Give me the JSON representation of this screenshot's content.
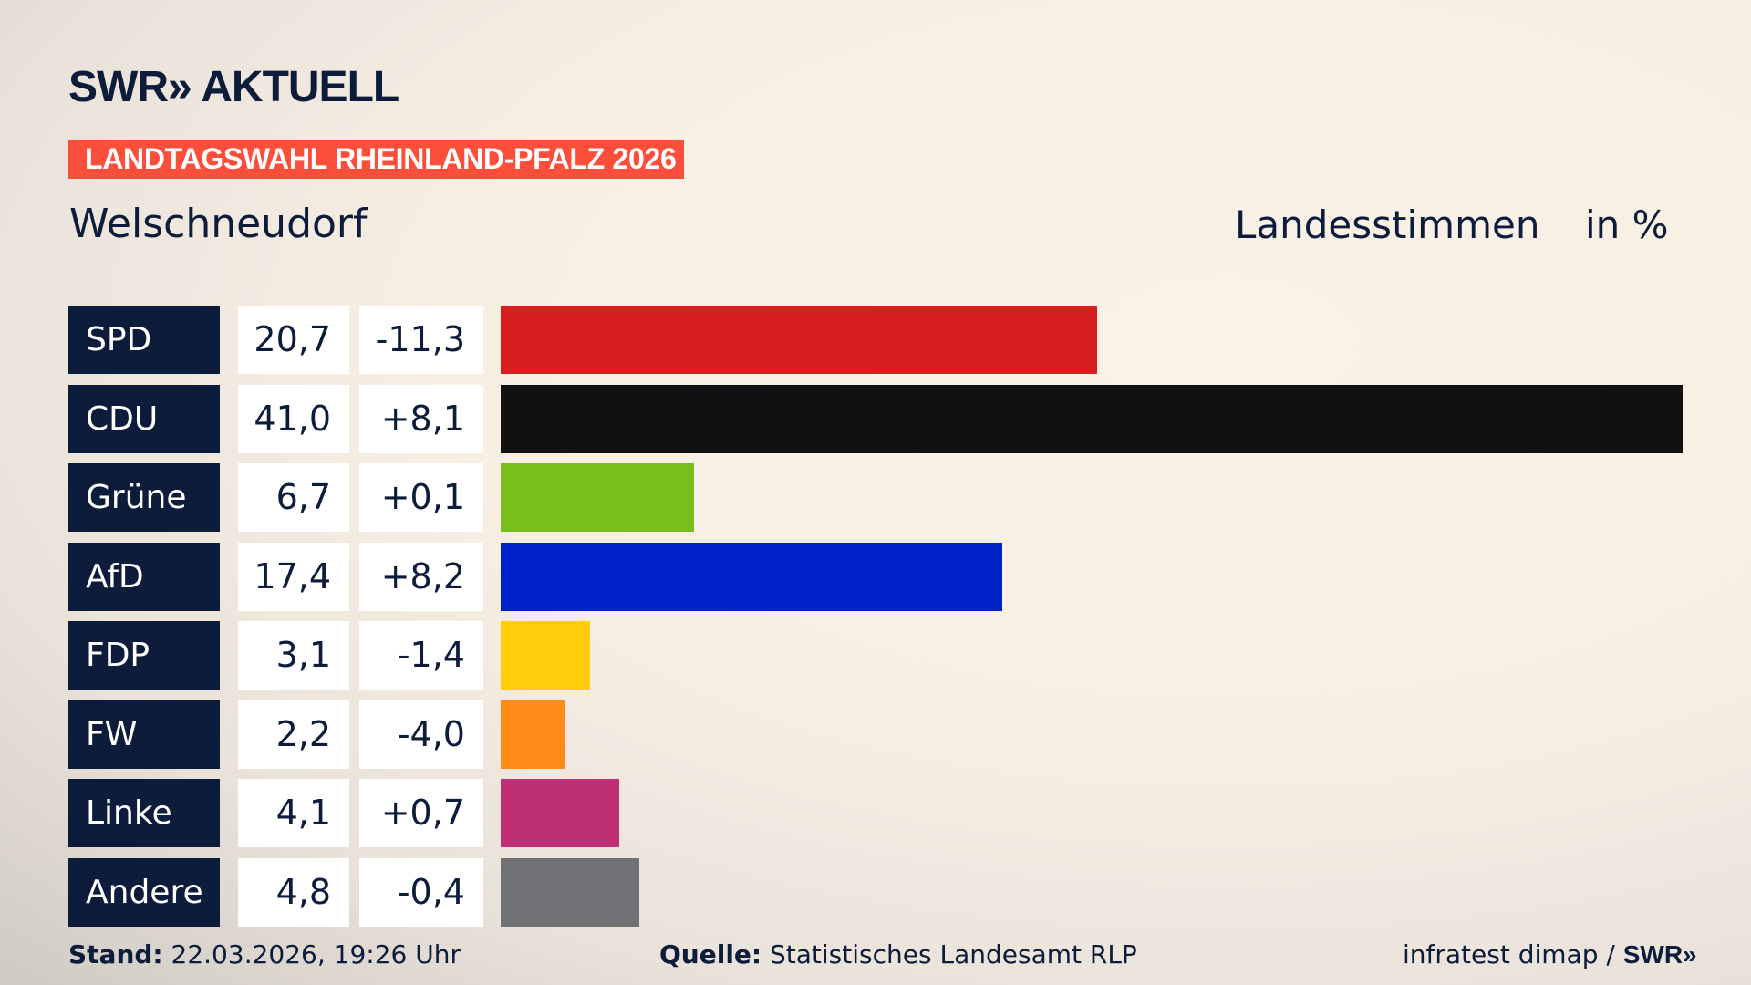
{
  "header": {
    "logo": "SWR» AKTUELL",
    "band": "LANDTAGSWAHL RHEINLAND-PFALZ 2026",
    "place": "Welschneudorf",
    "mode": "Landesstimmen",
    "unit": "in %"
  },
  "chart_data": {
    "type": "bar",
    "orientation": "horizontal",
    "title": "Welschneudorf",
    "xlabel": "Landesstimmen",
    "unit": "in %",
    "xlim": [
      0,
      41.0
    ],
    "categories": [
      "SPD",
      "CDU",
      "Grüne",
      "AfD",
      "FDP",
      "FW",
      "Linke",
      "Andere"
    ],
    "values": [
      20.7,
      41.0,
      6.7,
      17.4,
      3.1,
      2.2,
      4.1,
      4.8
    ],
    "value_labels": [
      "20,7",
      "41,0",
      "6,7",
      "17,4",
      "3,1",
      "2,2",
      "4,1",
      "4,8"
    ],
    "diff_labels": [
      "-11,3",
      "+8,1",
      "+0,1",
      "+8,2",
      "-1,4",
      "-4,0",
      "+0,7",
      "-0,4"
    ],
    "diffs": [
      -11.3,
      8.1,
      0.1,
      8.2,
      -1.4,
      -4.0,
      0.7,
      -0.4
    ],
    "colors": [
      "#d81f20",
      "#111111",
      "#78be1c",
      "#0020c8",
      "#ffcd0a",
      "#ff8c18",
      "#be2f75",
      "#717275"
    ]
  },
  "footer": {
    "stand_label": "Stand:",
    "stand_value": "22.03.2026, 19:26 Uhr",
    "source_label": "Quelle:",
    "source_value": "Statistisches Landesamt RLP",
    "credit": "infratest dimap / ",
    "credit_logo": "SWR»"
  }
}
